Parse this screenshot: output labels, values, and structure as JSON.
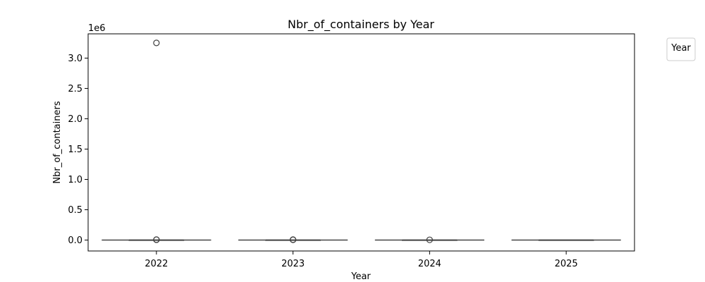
{
  "chart_data": {
    "type": "box",
    "title": "Nbr_of_containers by Year",
    "xlabel": "Year",
    "ylabel": "Nbr_of_containers",
    "y_scale_label": "1e6",
    "categories": [
      "2022",
      "2023",
      "2024",
      "2025"
    ],
    "ylim": [
      -180000,
      3400000
    ],
    "yticks": [
      0,
      500000,
      1000000,
      1500000,
      2000000,
      2500000,
      3000000
    ],
    "ytick_labels": [
      "0.0",
      "0.5",
      "1.0",
      "1.5",
      "2.0",
      "2.5",
      "3.0"
    ],
    "boxes": [
      {
        "category": "2022",
        "whisker_low": 0,
        "q1": 0,
        "median": 0,
        "q3": 0,
        "whisker_high": 0,
        "outliers": [
          3250000,
          5000,
          8000
        ]
      },
      {
        "category": "2023",
        "whisker_low": 0,
        "q1": 0,
        "median": 0,
        "q3": 0,
        "whisker_high": 0,
        "outliers": [
          4000,
          7000
        ]
      },
      {
        "category": "2024",
        "whisker_low": 0,
        "q1": 0,
        "median": 0,
        "q3": 0,
        "whisker_high": 0,
        "outliers": [
          4000
        ]
      },
      {
        "category": "2025",
        "whisker_low": 0,
        "q1": 0,
        "median": 0,
        "q3": 0,
        "whisker_high": 0,
        "outliers": []
      }
    ],
    "legend": {
      "title": "Year",
      "entries": [],
      "position": "outside-right-top"
    },
    "grid": false,
    "colors": {
      "box_line": "#3f3f3f",
      "outlier_edge": "#3f3f3f",
      "axes": "#000000"
    }
  }
}
